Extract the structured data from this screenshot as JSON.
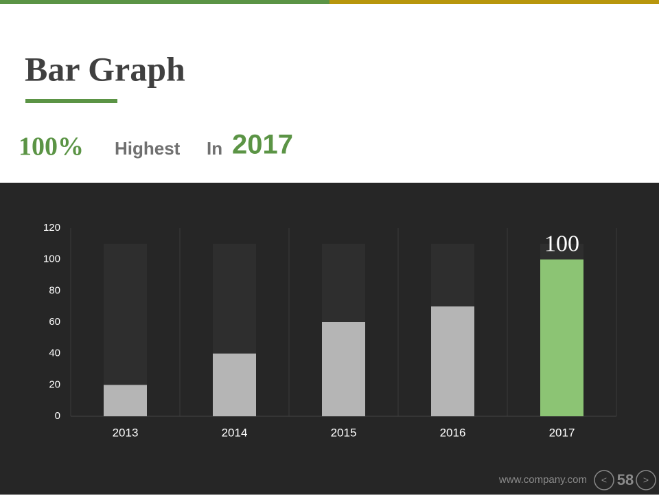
{
  "header": {
    "title": "Bar Graph",
    "highlight": {
      "percent": "100%",
      "text": "Highest",
      "preposition": "In",
      "year": "2017"
    }
  },
  "chart_data": {
    "type": "bar",
    "categories": [
      "2013",
      "2014",
      "2015",
      "2016",
      "2017"
    ],
    "series": [
      {
        "color": "#2e2e2e",
        "values": [
          110,
          110,
          110,
          110,
          110
        ]
      },
      {
        "color": "#b5b5b5",
        "colors": [
          "#b5b5b5",
          "#b5b5b5",
          "#b5b5b5",
          "#b5b5b5",
          "#8cc474"
        ],
        "values": [
          20,
          40,
          60,
          70,
          100
        ]
      }
    ],
    "labeled_points": [
      [
        1,
        4
      ]
    ],
    "ylim": [
      0,
      120
    ],
    "yticks": [
      0,
      20,
      40,
      60,
      80,
      100,
      120
    ],
    "grid": false
  },
  "footer": {
    "website": "www.company.com",
    "page": "58",
    "prev": "<",
    "next": ">"
  }
}
